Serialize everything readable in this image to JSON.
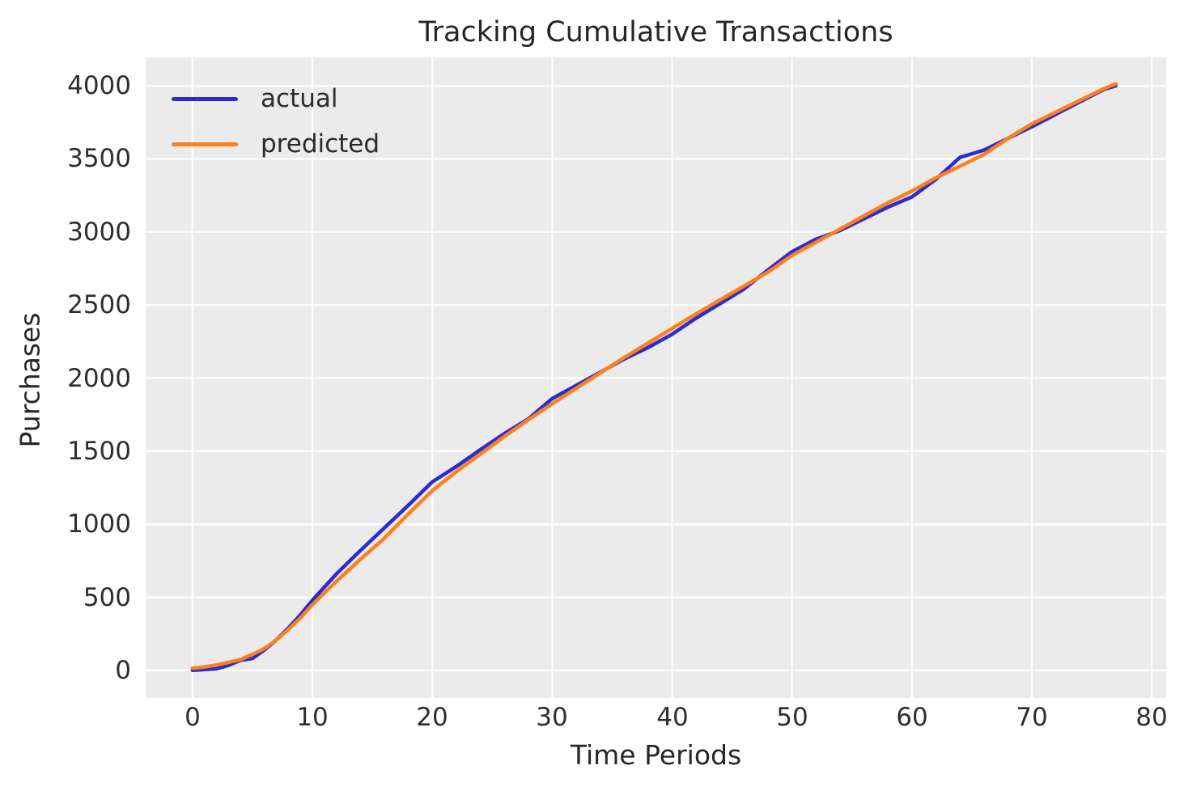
{
  "legend": [
    {
      "label": "actual",
      "color": "#2b2ad7"
    },
    {
      "label": "predicted",
      "color": "#ff8019"
    }
  ],
  "chart_data": {
    "type": "line",
    "title": "Tracking Cumulative Transactions",
    "xlabel": "Time Periods",
    "ylabel": "Purchases",
    "x_ticks": [
      0,
      10,
      20,
      30,
      40,
      50,
      60,
      70,
      80
    ],
    "y_ticks": [
      0,
      500,
      1000,
      1500,
      2000,
      2500,
      3000,
      3500,
      4000
    ],
    "xlim": [
      -3.9,
      81.2
    ],
    "ylim": [
      -188,
      4194
    ],
    "grid": true,
    "grid_color": "#ffffff",
    "background": "#ebebeb",
    "legend_position": "upper left",
    "x": [
      0,
      1,
      2,
      3,
      4,
      5,
      6,
      7,
      8,
      9,
      10,
      12,
      14,
      16,
      18,
      20,
      22,
      24,
      26,
      28,
      30,
      32,
      34,
      36,
      38,
      40,
      42,
      44,
      46,
      48,
      50,
      52,
      54,
      56,
      58,
      60,
      62,
      64,
      66,
      68,
      70,
      72,
      74,
      76,
      77
    ],
    "series": [
      {
        "name": "actual",
        "color": "#2b2ad7",
        "values": [
          2,
          6,
          12,
          35,
          70,
          82,
          140,
          210,
          290,
          380,
          480,
          660,
          820,
          975,
          1130,
          1290,
          1395,
          1510,
          1620,
          1720,
          1860,
          1950,
          2040,
          2130,
          2210,
          2300,
          2410,
          2510,
          2610,
          2740,
          2865,
          2950,
          3010,
          3090,
          3170,
          3240,
          3360,
          3510,
          3560,
          3640,
          3720,
          3805,
          3890,
          3975,
          4000
        ]
      },
      {
        "name": "predicted",
        "color": "#ff8019",
        "values": [
          15,
          24,
          38,
          55,
          75,
          110,
          150,
          210,
          280,
          360,
          450,
          610,
          760,
          905,
          1070,
          1230,
          1360,
          1480,
          1600,
          1715,
          1825,
          1930,
          2035,
          2140,
          2240,
          2340,
          2440,
          2535,
          2630,
          2725,
          2840,
          2930,
          3020,
          3110,
          3200,
          3280,
          3370,
          3450,
          3530,
          3640,
          3740,
          3820,
          3900,
          3980,
          4013
        ]
      }
    ]
  }
}
